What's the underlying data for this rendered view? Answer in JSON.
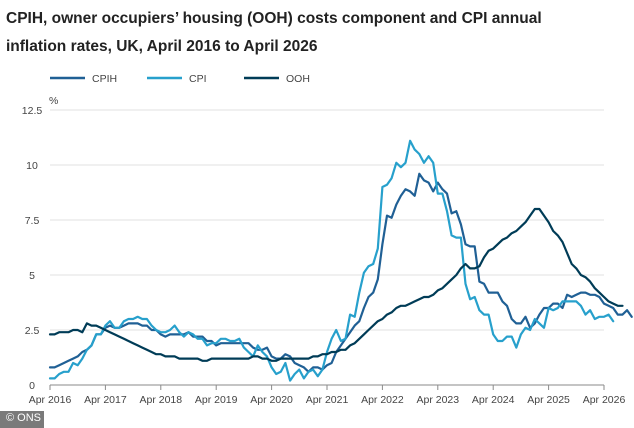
{
  "title_line1": "CPIH, owner occupiers’ housing (OOH) costs component and CPI annual",
  "title_line2": "inflation rates, UK, April 2016 to April 2026",
  "watermark": "© ONS",
  "chart_data": {
    "type": "line",
    "title": "CPIH, owner occupiers’ housing (OOH) costs component and CPI annual inflation rates, UK, April 2016 to April 2026",
    "xlabel": "",
    "ylabel": "%",
    "ylim": [
      0,
      12.5
    ],
    "yticks": [
      "0",
      "2.5",
      "5",
      "7.5",
      "10",
      "12.5"
    ],
    "xticks": [
      "Apr 2016",
      "Apr 2017",
      "Apr 2018",
      "Apr 2019",
      "Apr 2020",
      "Apr 2021",
      "Apr 2022",
      "Apr 2023",
      "Apr 2024",
      "Apr 2025",
      "Apr 2026"
    ],
    "x_start": "Apr 2016",
    "x_frequency": "monthly",
    "grid": "horizontal",
    "legend_position": "top-left",
    "series": [
      {
        "name": "CPIH",
        "color": "#206095",
        "values": [
          0.8,
          0.8,
          0.9,
          1.0,
          1.1,
          1.2,
          1.3,
          1.5,
          1.6,
          1.8,
          2.3,
          2.3,
          2.6,
          2.7,
          2.6,
          2.6,
          2.7,
          2.8,
          2.8,
          2.8,
          2.7,
          2.7,
          2.5,
          2.5,
          2.3,
          2.2,
          2.3,
          2.3,
          2.3,
          2.3,
          2.4,
          2.2,
          2.2,
          2.2,
          2.0,
          2.0,
          1.8,
          1.9,
          1.9,
          1.9,
          1.9,
          1.9,
          1.9,
          1.9,
          1.7,
          1.6,
          1.6,
          1.7,
          1.3,
          1.2,
          1.2,
          1.4,
          1.3,
          1.0,
          0.9,
          0.8,
          0.6,
          0.8,
          0.8,
          0.7,
          0.9,
          1.0,
          1.5,
          1.8,
          2.1,
          2.4,
          2.7,
          2.9,
          3.5,
          4.0,
          4.2,
          4.8,
          6.4,
          7.7,
          7.6,
          8.2,
          8.6,
          8.9,
          8.8,
          8.6,
          9.6,
          9.3,
          9.2,
          8.8,
          9.2,
          8.9,
          8.7,
          7.8,
          7.9,
          7.3,
          6.4,
          6.3,
          6.3,
          4.7,
          4.6,
          4.2,
          4.2,
          4.2,
          3.8,
          3.6,
          3.0,
          2.8,
          2.8,
          3.1,
          2.6,
          2.8,
          3.2,
          3.5,
          3.5,
          3.7,
          3.7,
          3.5,
          4.1,
          4.0,
          4.1,
          4.2,
          4.2,
          4.1,
          4.1,
          4.0,
          3.7,
          3.6,
          3.5,
          3.2,
          3.2,
          3.4,
          3.1
        ],
        "note": "12 months per tick from Apr 2016; values approximate"
      },
      {
        "name": "CPI",
        "color": "#27a0cc",
        "values": [
          0.3,
          0.3,
          0.5,
          0.6,
          0.6,
          1.0,
          0.9,
          1.2,
          1.6,
          1.8,
          2.3,
          2.3,
          2.7,
          2.9,
          2.6,
          2.6,
          2.9,
          3.0,
          3.0,
          3.1,
          3.0,
          3.0,
          2.7,
          2.5,
          2.4,
          2.4,
          2.5,
          2.7,
          2.4,
          2.2,
          2.4,
          2.3,
          2.1,
          2.1,
          1.8,
          1.9,
          1.9,
          2.1,
          2.1,
          2.0,
          2.0,
          2.1,
          1.7,
          1.5,
          1.3,
          1.8,
          1.5,
          1.3,
          0.8,
          0.5,
          0.6,
          1.0,
          0.2,
          0.5,
          0.7,
          0.3,
          0.6,
          0.7,
          0.4,
          0.7,
          1.5,
          2.1,
          2.5,
          2.0,
          2.1,
          3.2,
          3.1,
          4.2,
          5.1,
          5.4,
          5.5,
          6.2,
          9.0,
          9.1,
          9.4,
          10.1,
          9.9,
          10.1,
          11.1,
          10.7,
          10.5,
          10.1,
          10.4,
          10.1,
          8.7,
          8.7,
          7.9,
          6.8,
          6.7,
          6.7,
          4.6,
          3.9,
          4.0,
          3.4,
          3.2,
          3.2,
          2.3,
          2.0,
          2.0,
          2.2,
          2.2,
          1.7,
          2.3,
          2.6,
          2.5,
          3.0,
          2.8,
          2.6,
          3.5,
          3.4,
          3.5,
          3.8,
          3.8,
          3.8,
          3.8,
          3.6,
          3.2,
          3.4,
          3.0,
          3.1,
          3.1,
          3.2,
          2.9
        ],
        "note": "values approximate"
      },
      {
        "name": "OOH",
        "color": "#003c57",
        "values": [
          2.3,
          2.3,
          2.4,
          2.4,
          2.4,
          2.5,
          2.5,
          2.4,
          2.8,
          2.7,
          2.7,
          2.6,
          2.5,
          2.4,
          2.3,
          2.2,
          2.1,
          2.0,
          1.9,
          1.8,
          1.7,
          1.6,
          1.5,
          1.4,
          1.4,
          1.3,
          1.3,
          1.3,
          1.2,
          1.2,
          1.2,
          1.2,
          1.2,
          1.1,
          1.1,
          1.2,
          1.2,
          1.2,
          1.2,
          1.2,
          1.2,
          1.2,
          1.2,
          1.2,
          1.3,
          1.3,
          1.2,
          1.2,
          1.1,
          1.1,
          1.2,
          1.2,
          1.2,
          1.2,
          1.2,
          1.2,
          1.2,
          1.3,
          1.3,
          1.4,
          1.4,
          1.5,
          1.5,
          1.6,
          1.6,
          1.8,
          1.9,
          2.1,
          2.3,
          2.5,
          2.7,
          2.9,
          3.0,
          3.2,
          3.3,
          3.5,
          3.6,
          3.6,
          3.7,
          3.8,
          3.9,
          4.0,
          4.0,
          4.1,
          4.3,
          4.4,
          4.6,
          4.8,
          5.0,
          5.3,
          5.5,
          5.3,
          5.3,
          5.4,
          5.8,
          6.1,
          6.2,
          6.4,
          6.6,
          6.7,
          6.9,
          7.0,
          7.2,
          7.4,
          7.7,
          8.0,
          8.0,
          7.7,
          7.4,
          7.0,
          6.8,
          6.5,
          6.0,
          5.5,
          5.3,
          5.0,
          4.9,
          4.7,
          4.4,
          4.2,
          4.0,
          3.8,
          3.7,
          3.6,
          3.6
        ],
        "note": "values approximate"
      }
    ]
  }
}
